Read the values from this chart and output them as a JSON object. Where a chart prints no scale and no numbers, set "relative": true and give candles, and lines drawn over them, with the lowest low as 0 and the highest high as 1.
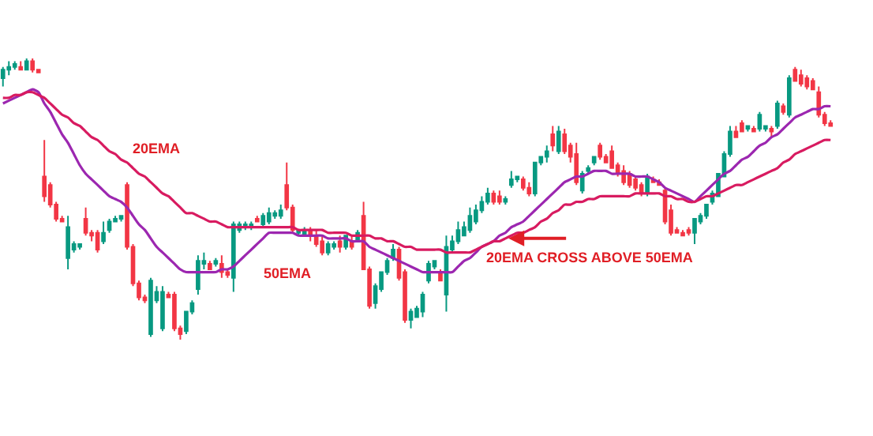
{
  "chart_data": {
    "type": "candlestick",
    "relative": true,
    "categories": [
      null,
      null,
      null,
      null,
      null,
      null,
      null,
      null,
      null,
      null,
      null,
      null,
      null,
      null,
      null,
      null,
      null,
      null,
      null,
      null,
      null,
      null,
      null,
      null,
      null,
      null,
      null,
      null,
      null,
      null,
      null,
      null,
      null,
      null,
      null,
      null,
      null,
      null,
      null,
      null,
      null,
      null,
      null,
      null,
      null,
      null,
      null,
      null,
      null,
      null,
      null,
      null,
      null,
      null,
      null,
      null,
      null,
      null,
      null,
      null,
      null,
      null,
      null,
      null,
      null,
      null,
      null,
      null,
      null,
      null,
      null,
      null,
      null,
      null,
      null,
      null,
      null,
      null,
      null,
      null,
      null,
      null,
      null,
      null,
      null,
      null,
      null,
      null,
      null,
      null,
      null,
      null,
      null,
      null,
      null,
      null,
      null,
      null,
      null,
      null,
      null,
      null,
      null,
      null,
      null,
      null,
      null,
      null,
      null,
      null,
      null,
      null,
      null,
      null,
      null,
      null,
      null,
      null,
      null,
      null,
      null,
      null,
      null,
      null,
      null,
      null,
      null,
      null,
      null,
      null,
      null,
      null,
      null,
      null,
      null,
      null,
      null,
      null,
      null,
      null,
      null
    ],
    "ohlc": [
      [
        0.93,
        0.97,
        0.9,
        0.96
      ],
      [
        0.96,
        0.99,
        0.94,
        0.97
      ],
      [
        0.97,
        0.99,
        0.96,
        0.98
      ],
      [
        0.97,
        0.99,
        0.96,
        0.96
      ],
      [
        0.96,
        1.0,
        0.96,
        0.99
      ],
      [
        0.99,
        1.0,
        0.95,
        0.96
      ],
      [
        0.96,
        0.96,
        0.95,
        0.95
      ],
      [
        0.58,
        0.71,
        0.49,
        0.51
      ],
      [
        0.55,
        0.56,
        0.47,
        0.48
      ],
      [
        0.48,
        0.49,
        0.42,
        0.43
      ],
      [
        0.43,
        0.44,
        0.42,
        0.42
      ],
      [
        0.29,
        0.44,
        0.25,
        0.4
      ],
      [
        0.32,
        0.35,
        0.31,
        0.34
      ],
      [
        0.33,
        0.34,
        0.32,
        0.34
      ],
      [
        0.43,
        0.47,
        0.37,
        0.38
      ],
      [
        0.38,
        0.39,
        0.35,
        0.37
      ],
      [
        0.38,
        0.39,
        0.31,
        0.32
      ],
      [
        0.35,
        0.42,
        0.34,
        0.38
      ],
      [
        0.39,
        0.43,
        0.38,
        0.42
      ],
      [
        0.42,
        0.44,
        0.42,
        0.43
      ],
      [
        0.43,
        0.44,
        0.42,
        0.44
      ],
      [
        0.55,
        0.56,
        0.32,
        0.33
      ],
      [
        0.33,
        0.34,
        0.19,
        0.2
      ],
      [
        0.2,
        0.21,
        0.14,
        0.15
      ],
      [
        0.15,
        0.16,
        0.13,
        0.14
      ],
      [
        0.02,
        0.22,
        0.01,
        0.21
      ],
      [
        0.14,
        0.19,
        0.13,
        0.17
      ],
      [
        0.04,
        0.19,
        0.03,
        0.17
      ],
      [
        0.16,
        0.17,
        0.15,
        0.15
      ],
      [
        0.16,
        0.17,
        0.03,
        0.04
      ],
      [
        0.04,
        0.05,
        0.0,
        0.02
      ],
      [
        0.03,
        0.1,
        0.02,
        0.1
      ],
      [
        0.1,
        0.14,
        0.09,
        0.13
      ],
      [
        0.18,
        0.3,
        0.16,
        0.28
      ],
      [
        0.27,
        0.31,
        0.25,
        0.28
      ],
      [
        0.27,
        0.28,
        0.25,
        0.25
      ],
      [
        0.27,
        0.29,
        0.26,
        0.28
      ],
      [
        0.27,
        0.3,
        0.22,
        0.24
      ],
      [
        0.24,
        0.25,
        0.22,
        0.23
      ],
      [
        0.22,
        0.42,
        0.17,
        0.41
      ],
      [
        0.39,
        0.42,
        0.38,
        0.41
      ],
      [
        0.4,
        0.42,
        0.39,
        0.41
      ],
      [
        0.4,
        0.42,
        0.39,
        0.41
      ],
      [
        0.43,
        0.44,
        0.42,
        0.42
      ],
      [
        0.41,
        0.45,
        0.4,
        0.44
      ],
      [
        0.42,
        0.47,
        0.41,
        0.45
      ],
      [
        0.44,
        0.46,
        0.43,
        0.45
      ],
      [
        0.44,
        0.48,
        0.43,
        0.46
      ],
      [
        0.55,
        0.63,
        0.46,
        0.47
      ],
      [
        0.47,
        0.48,
        0.38,
        0.39
      ],
      [
        0.38,
        0.39,
        0.37,
        0.39
      ],
      [
        0.37,
        0.4,
        0.37,
        0.39
      ],
      [
        0.39,
        0.4,
        0.35,
        0.37
      ],
      [
        0.37,
        0.39,
        0.33,
        0.34
      ],
      [
        0.35,
        0.37,
        0.3,
        0.31
      ],
      [
        0.31,
        0.35,
        0.3,
        0.34
      ],
      [
        0.33,
        0.35,
        0.32,
        0.34
      ],
      [
        0.35,
        0.37,
        0.31,
        0.33
      ],
      [
        0.33,
        0.37,
        0.32,
        0.37
      ],
      [
        0.35,
        0.37,
        0.32,
        0.33
      ],
      [
        0.35,
        0.39,
        0.35,
        0.38
      ],
      [
        0.44,
        0.49,
        0.25,
        0.25
      ],
      [
        0.25,
        0.26,
        0.11,
        0.12
      ],
      [
        0.13,
        0.2,
        0.11,
        0.19
      ],
      [
        0.18,
        0.24,
        0.17,
        0.24
      ],
      [
        0.24,
        0.29,
        0.23,
        0.28
      ],
      [
        0.29,
        0.34,
        0.28,
        0.32
      ],
      [
        0.32,
        0.33,
        0.21,
        0.22
      ],
      [
        0.24,
        0.25,
        0.06,
        0.07
      ],
      [
        0.07,
        0.11,
        0.04,
        0.1
      ],
      [
        0.08,
        0.12,
        0.08,
        0.11
      ],
      [
        0.1,
        0.17,
        0.08,
        0.16
      ],
      [
        0.21,
        0.28,
        0.2,
        0.27
      ],
      [
        0.26,
        0.28,
        0.25,
        0.28
      ],
      [
        0.24,
        0.25,
        0.21,
        0.21
      ],
      [
        0.16,
        0.37,
        0.1,
        0.33
      ],
      [
        0.32,
        0.37,
        0.31,
        0.35
      ],
      [
        0.35,
        0.42,
        0.34,
        0.39
      ],
      [
        0.37,
        0.42,
        0.37,
        0.4
      ],
      [
        0.39,
        0.47,
        0.38,
        0.44
      ],
      [
        0.42,
        0.48,
        0.41,
        0.46
      ],
      [
        0.46,
        0.51,
        0.45,
        0.49
      ],
      [
        0.49,
        0.54,
        0.48,
        0.52
      ],
      [
        0.52,
        0.53,
        0.48,
        0.49
      ],
      [
        0.51,
        0.53,
        0.48,
        0.49
      ],
      [
        0.49,
        0.51,
        0.48,
        0.5
      ],
      [
        0.55,
        0.6,
        0.54,
        0.57
      ],
      [
        0.57,
        0.58,
        0.56,
        0.58
      ],
      [
        0.57,
        0.58,
        0.53,
        0.54
      ],
      [
        0.54,
        0.56,
        0.51,
        0.52
      ],
      [
        0.52,
        0.63,
        0.51,
        0.63
      ],
      [
        0.63,
        0.65,
        0.62,
        0.65
      ],
      [
        0.65,
        0.69,
        0.63,
        0.67
      ],
      [
        0.73,
        0.76,
        0.67,
        0.69
      ],
      [
        0.67,
        0.76,
        0.66,
        0.74
      ],
      [
        0.73,
        0.75,
        0.66,
        0.67
      ],
      [
        0.69,
        0.7,
        0.63,
        0.65
      ],
      [
        0.66,
        0.7,
        0.55,
        0.56
      ],
      [
        0.53,
        0.6,
        0.52,
        0.59
      ],
      [
        0.6,
        0.62,
        0.59,
        0.61
      ],
      [
        0.63,
        0.65,
        0.62,
        0.65
      ],
      [
        0.69,
        0.7,
        0.64,
        0.65
      ],
      [
        0.65,
        0.66,
        0.63,
        0.63
      ],
      [
        0.67,
        0.69,
        0.61,
        0.61
      ],
      [
        0.62,
        0.63,
        0.58,
        0.59
      ],
      [
        0.6,
        0.62,
        0.55,
        0.56
      ],
      [
        0.59,
        0.6,
        0.54,
        0.55
      ],
      [
        0.57,
        0.58,
        0.53,
        0.54
      ],
      [
        0.55,
        0.56,
        0.51,
        0.52
      ],
      [
        0.52,
        0.59,
        0.51,
        0.58
      ],
      [
        0.57,
        0.58,
        0.56,
        0.56
      ],
      [
        0.56,
        0.57,
        0.55,
        0.55
      ],
      [
        0.53,
        0.54,
        0.41,
        0.42
      ],
      [
        0.46,
        0.48,
        0.37,
        0.38
      ],
      [
        0.39,
        0.4,
        0.38,
        0.38
      ],
      [
        0.38,
        0.39,
        0.37,
        0.37
      ],
      [
        0.39,
        0.4,
        0.37,
        0.38
      ],
      [
        0.38,
        0.43,
        0.34,
        0.43
      ],
      [
        0.42,
        0.45,
        0.41,
        0.44
      ],
      [
        0.44,
        0.48,
        0.43,
        0.48
      ],
      [
        0.49,
        0.53,
        0.48,
        0.52
      ],
      [
        0.51,
        0.59,
        0.51,
        0.59
      ],
      [
        0.58,
        0.67,
        0.58,
        0.66
      ],
      [
        0.66,
        0.76,
        0.65,
        0.74
      ],
      [
        0.74,
        0.76,
        0.72,
        0.72
      ],
      [
        0.77,
        0.78,
        0.74,
        0.74
      ],
      [
        0.75,
        0.76,
        0.74,
        0.76
      ],
      [
        0.75,
        0.76,
        0.74,
        0.74
      ],
      [
        0.75,
        0.81,
        0.74,
        0.8
      ],
      [
        0.75,
        0.76,
        0.74,
        0.76
      ],
      [
        0.75,
        0.76,
        0.72,
        0.74
      ],
      [
        0.76,
        0.85,
        0.75,
        0.84
      ],
      [
        0.83,
        0.84,
        0.8,
        0.81
      ],
      [
        0.8,
        0.94,
        0.79,
        0.93
      ],
      [
        0.96,
        0.97,
        0.92,
        0.92
      ],
      [
        0.94,
        0.96,
        0.9,
        0.91
      ],
      [
        0.93,
        0.94,
        0.89,
        0.9
      ],
      [
        0.92,
        0.93,
        0.89,
        0.89
      ],
      [
        0.88,
        0.9,
        0.79,
        0.8
      ],
      [
        0.8,
        0.81,
        0.76,
        0.77
      ],
      [
        0.77,
        0.78,
        0.76,
        0.76
      ]
    ],
    "colors": [
      "#089981",
      "#089981",
      "#089981",
      "#f23645",
      "#089981",
      "#f23645",
      "#f23645",
      "#f23645",
      "#f23645",
      "#f23645",
      "#f23645",
      "#089981",
      "#089981",
      "#089981",
      "#f23645",
      "#f23645",
      "#f23645",
      "#089981",
      "#089981",
      "#089981",
      "#089981",
      "#f23645",
      "#f23645",
      "#f23645",
      "#f23645",
      "#089981",
      "#089981",
      "#089981",
      "#f23645",
      "#f23645",
      "#f23645",
      "#089981",
      "#089981",
      "#089981",
      "#089981",
      "#f23645",
      "#089981",
      "#f23645",
      "#f23645",
      "#089981",
      "#089981",
      "#089981",
      "#089981",
      "#f23645",
      "#089981",
      "#089981",
      "#089981",
      "#089981",
      "#f23645",
      "#f23645",
      "#089981",
      "#089981",
      "#f23645",
      "#f23645",
      "#f23645",
      "#089981",
      "#089981",
      "#f23645",
      "#089981",
      "#f23645",
      "#089981",
      "#f23645",
      "#f23645",
      "#089981",
      "#089981",
      "#089981",
      "#089981",
      "#f23645",
      "#f23645",
      "#089981",
      "#089981",
      "#089981",
      "#089981",
      "#089981",
      "#f23645",
      "#089981",
      "#089981",
      "#089981",
      "#089981",
      "#089981",
      "#089981",
      "#089981",
      "#089981",
      "#f23645",
      "#f23645",
      "#089981",
      "#089981",
      "#089981",
      "#f23645",
      "#f23645",
      "#089981",
      "#089981",
      "#089981",
      "#f23645",
      "#089981",
      "#f23645",
      "#f23645",
      "#f23645",
      "#089981",
      "#089981",
      "#089981",
      "#f23645",
      "#f23645",
      "#f23645",
      "#f23645",
      "#f23645",
      "#f23645",
      "#f23645",
      "#f23645",
      "#089981",
      "#f23645",
      "#f23645",
      "#f23645",
      "#f23645",
      "#f23645",
      "#f23645",
      "#f23645",
      "#089981",
      "#089981",
      "#089981",
      "#089981",
      "#089981",
      "#089981",
      "#089981",
      "#f23645",
      "#f23645",
      "#089981",
      "#f23645",
      "#089981",
      "#089981",
      "#f23645",
      "#089981",
      "#f23645",
      "#089981",
      "#f23645",
      "#f23645",
      "#f23645",
      "#f23645",
      "#f23645",
      "#f23645",
      "#f23645"
    ],
    "series": [
      {
        "type": "line",
        "color": "#9c27b0",
        "values": [
          0.84,
          0.85,
          0.86,
          0.87,
          0.88,
          0.89,
          0.88,
          0.84,
          0.81,
          0.77,
          0.73,
          0.7,
          0.66,
          0.62,
          0.59,
          0.57,
          0.55,
          0.53,
          0.51,
          0.5,
          0.49,
          0.47,
          0.44,
          0.41,
          0.39,
          0.36,
          0.33,
          0.31,
          0.29,
          0.27,
          0.25,
          0.24,
          0.24,
          0.24,
          0.24,
          0.24,
          0.24,
          0.25,
          0.25,
          0.26,
          0.28,
          0.3,
          0.32,
          0.34,
          0.36,
          0.38,
          0.38,
          0.38,
          0.38,
          0.38,
          0.37,
          0.37,
          0.37,
          0.37,
          0.37,
          0.36,
          0.36,
          0.36,
          0.36,
          0.35,
          0.35,
          0.35,
          0.33,
          0.32,
          0.31,
          0.3,
          0.29,
          0.28,
          0.27,
          0.26,
          0.25,
          0.24,
          0.24,
          0.24,
          0.24,
          0.24,
          0.24,
          0.26,
          0.28,
          0.29,
          0.31,
          0.33,
          0.34,
          0.35,
          0.37,
          0.38,
          0.4,
          0.41,
          0.42,
          0.44,
          0.46,
          0.48,
          0.5,
          0.52,
          0.54,
          0.56,
          0.57,
          0.58,
          0.58,
          0.59,
          0.6,
          0.6,
          0.6,
          0.59,
          0.59,
          0.59,
          0.59,
          0.58,
          0.58,
          0.58,
          0.57,
          0.56,
          0.54,
          0.53,
          0.52,
          0.51,
          0.5,
          0.49,
          0.51,
          0.53,
          0.55,
          0.57,
          0.59,
          0.6,
          0.62,
          0.64,
          0.65,
          0.67,
          0.69,
          0.7,
          0.72,
          0.73,
          0.75,
          0.77,
          0.79,
          0.8,
          0.81,
          0.82,
          0.82,
          0.83,
          0.83
        ]
      },
      {
        "type": "line",
        "color": "#d81b60",
        "values": [
          0.86,
          0.86,
          0.87,
          0.87,
          0.88,
          0.88,
          0.87,
          0.86,
          0.84,
          0.82,
          0.8,
          0.79,
          0.77,
          0.76,
          0.74,
          0.72,
          0.71,
          0.69,
          0.67,
          0.66,
          0.64,
          0.63,
          0.61,
          0.59,
          0.58,
          0.56,
          0.54,
          0.52,
          0.51,
          0.49,
          0.47,
          0.45,
          0.45,
          0.44,
          0.43,
          0.42,
          0.42,
          0.41,
          0.4,
          0.4,
          0.4,
          0.4,
          0.4,
          0.4,
          0.4,
          0.4,
          0.4,
          0.4,
          0.4,
          0.4,
          0.39,
          0.39,
          0.39,
          0.39,
          0.39,
          0.38,
          0.38,
          0.38,
          0.38,
          0.37,
          0.37,
          0.37,
          0.37,
          0.36,
          0.36,
          0.35,
          0.35,
          0.34,
          0.33,
          0.33,
          0.32,
          0.32,
          0.32,
          0.32,
          0.32,
          0.31,
          0.31,
          0.31,
          0.31,
          0.31,
          0.32,
          0.33,
          0.34,
          0.35,
          0.35,
          0.36,
          0.37,
          0.38,
          0.38,
          0.39,
          0.4,
          0.42,
          0.43,
          0.45,
          0.46,
          0.48,
          0.48,
          0.49,
          0.49,
          0.5,
          0.5,
          0.51,
          0.51,
          0.51,
          0.51,
          0.51,
          0.51,
          0.52,
          0.52,
          0.52,
          0.52,
          0.52,
          0.51,
          0.51,
          0.5,
          0.5,
          0.49,
          0.49,
          0.5,
          0.51,
          0.51,
          0.52,
          0.53,
          0.54,
          0.55,
          0.55,
          0.56,
          0.57,
          0.58,
          0.59,
          0.6,
          0.61,
          0.63,
          0.64,
          0.66,
          0.67,
          0.68,
          0.69,
          0.7,
          0.71,
          0.71
        ]
      }
    ],
    "annotations": [
      "20EMA",
      "50EMA",
      "20EMA CROSS ABOVE 50EMA"
    ]
  }
}
